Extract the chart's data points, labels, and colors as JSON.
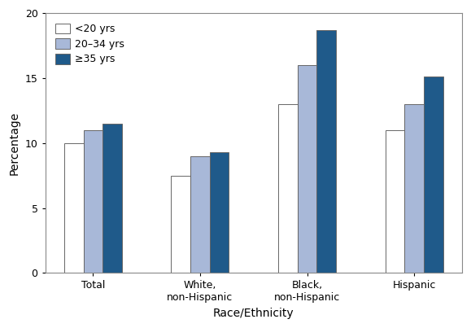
{
  "categories": [
    "Total",
    "White,\nnon-Hispanic",
    "Black,\nnon-Hispanic",
    "Hispanic"
  ],
  "series": [
    {
      "label": "<20 yrs",
      "values": [
        10.0,
        7.5,
        13.0,
        11.0
      ],
      "color": "#ffffff",
      "edgecolor": "#666666"
    },
    {
      "label": "20–34 yrs",
      "values": [
        11.0,
        9.0,
        16.0,
        13.0
      ],
      "color": "#a8b8d8",
      "edgecolor": "#666666"
    },
    {
      "label": "≥35 yrs",
      "values": [
        11.5,
        9.3,
        18.7,
        15.1
      ],
      "color": "#1f5a8a",
      "edgecolor": "#666666"
    }
  ],
  "ylabel": "Percentage",
  "xlabel": "Race/Ethnicity",
  "ylim": [
    0,
    20
  ],
  "yticks": [
    0,
    5,
    10,
    15,
    20
  ],
  "bar_width": 0.18,
  "background_color": "#ffffff",
  "legend_loc": "upper left",
  "spine_color": "#888888"
}
